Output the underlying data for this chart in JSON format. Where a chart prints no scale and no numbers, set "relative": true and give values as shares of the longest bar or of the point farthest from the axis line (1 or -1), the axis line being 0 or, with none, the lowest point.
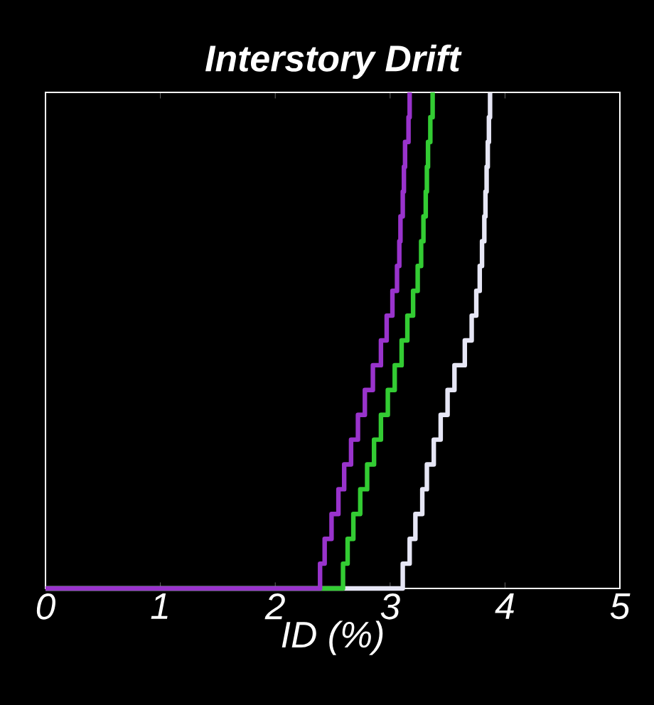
{
  "chart_data": {
    "type": "step",
    "title": "Interstory Drift",
    "xlabel": "ID (%)",
    "relative": true,
    "xlim": [
      0,
      5
    ],
    "xticks": [
      0,
      1,
      2,
      3,
      4,
      5
    ],
    "grid": false,
    "marker": "none",
    "line_style": "solid",
    "series": [
      {
        "color": "#e6e6f5",
        "x": [
          0,
          3.11,
          3.17,
          3.22,
          3.28,
          3.32,
          3.38,
          3.44,
          3.5,
          3.56,
          3.65,
          3.71,
          3.75,
          3.78,
          3.8,
          3.82,
          3.83,
          3.84,
          3.85,
          3.86,
          3.87
        ],
        "values": [
          0,
          0.05,
          0.1,
          0.15,
          0.2,
          0.25,
          0.3,
          0.35,
          0.4,
          0.45,
          0.5,
          0.55,
          0.6,
          0.65,
          0.7,
          0.75,
          0.8,
          0.85,
          0.9,
          0.95,
          1
        ]
      },
      {
        "color": "#33cc33",
        "x": [
          0,
          2.59,
          2.63,
          2.68,
          2.74,
          2.8,
          2.86,
          2.92,
          2.98,
          3.04,
          3.1,
          3.15,
          3.2,
          3.24,
          3.27,
          3.29,
          3.31,
          3.32,
          3.33,
          3.35,
          3.37
        ],
        "values": [
          0,
          0.05,
          0.1,
          0.15,
          0.2,
          0.25,
          0.3,
          0.35,
          0.4,
          0.45,
          0.5,
          0.55,
          0.6,
          0.65,
          0.7,
          0.75,
          0.8,
          0.85,
          0.9,
          0.95,
          1
        ]
      },
      {
        "color": "#9933cc",
        "x": [
          0,
          2.39,
          2.43,
          2.49,
          2.55,
          2.6,
          2.66,
          2.72,
          2.78,
          2.85,
          2.92,
          2.97,
          3.02,
          3.06,
          3.08,
          3.09,
          3.11,
          3.12,
          3.13,
          3.16,
          3.17
        ],
        "values": [
          0,
          0.05,
          0.1,
          0.15,
          0.2,
          0.25,
          0.3,
          0.35,
          0.4,
          0.45,
          0.5,
          0.55,
          0.6,
          0.65,
          0.7,
          0.75,
          0.8,
          0.85,
          0.9,
          0.95,
          1
        ]
      }
    ]
  }
}
